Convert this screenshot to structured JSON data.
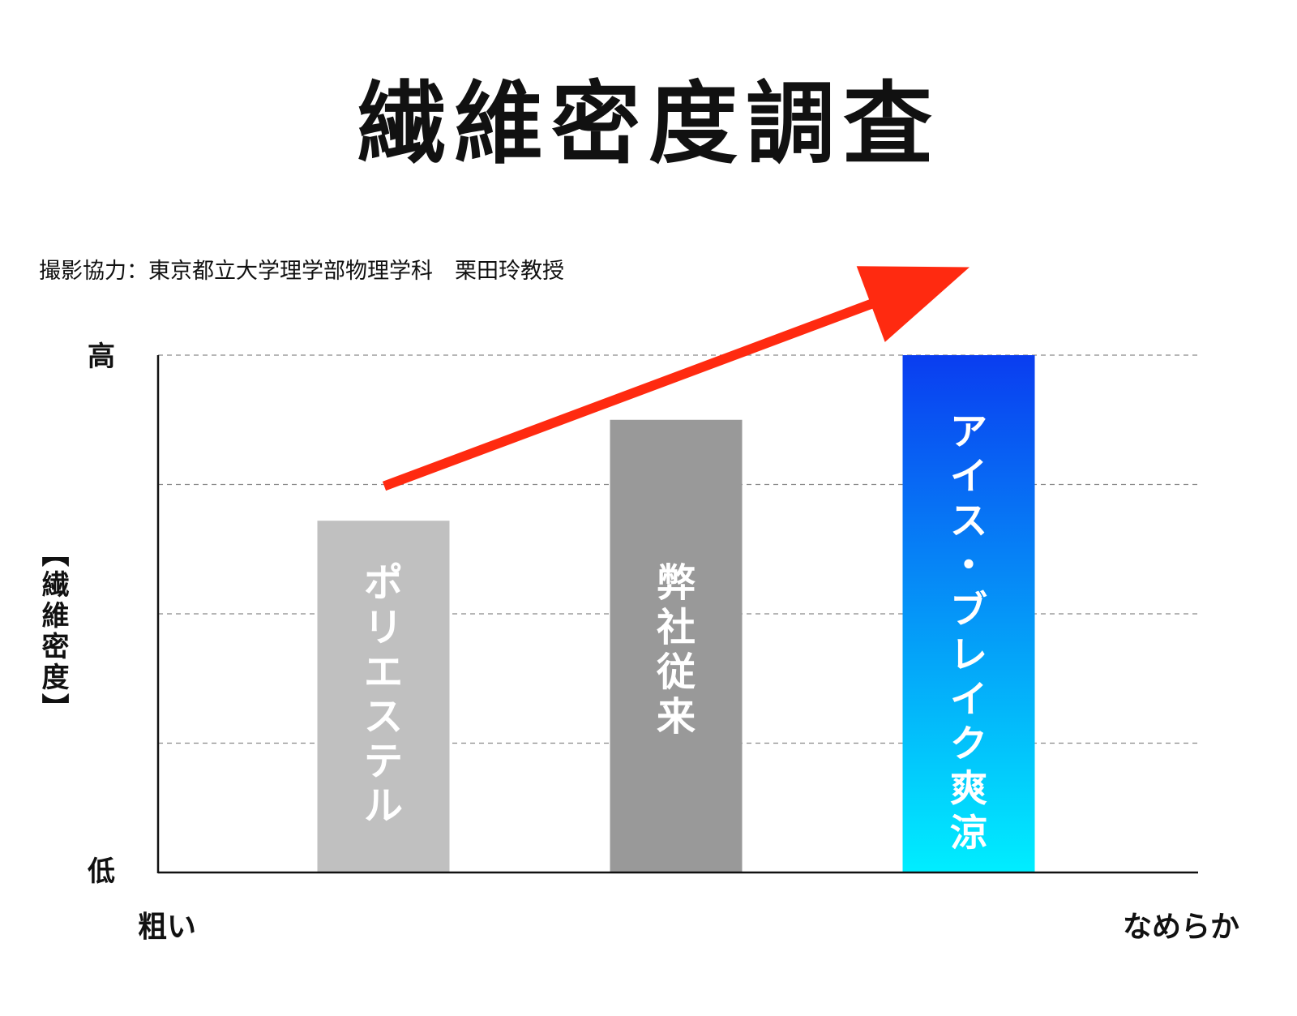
{
  "title": "繊維密度調査",
  "credit": "撮影協力：東京都立大学理学部物理学科　栗田玲教授",
  "chart_data": {
    "type": "bar",
    "title": "繊維密度調査",
    "ylabel": "【繊維密度】",
    "yticks": {
      "top": "高",
      "bottom": "低"
    },
    "xends": {
      "left": "粗い",
      "right": "なめらか"
    },
    "ylim": [
      0,
      100
    ],
    "gridlines": [
      25,
      50,
      75,
      100
    ],
    "grid": true,
    "categories": [
      "ポリエステル",
      "弊社従来",
      "アイス・ブレイク爽涼"
    ],
    "values": [
      68,
      87.5,
      100
    ],
    "bar_colors": [
      "#c0c0c0",
      "#999999",
      "gradient-blue-cyan"
    ],
    "gradient": {
      "top": "#0a3df0",
      "bottom": "#00eeff"
    },
    "arrow": {
      "color": "#ff2a10",
      "direction": "up-right",
      "from_value": 75,
      "to_value": 117
    }
  }
}
